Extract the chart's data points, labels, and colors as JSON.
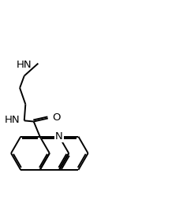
{
  "bg_color": "#ffffff",
  "line_color": "#000000",
  "text_color": "#000000",
  "line_width": 1.4,
  "font_size": 8.5,
  "figsize": [
    2.28,
    2.67
  ],
  "dpi": 100,
  "xlim": [
    0,
    10
  ],
  "ylim": [
    0,
    11.7
  ]
}
